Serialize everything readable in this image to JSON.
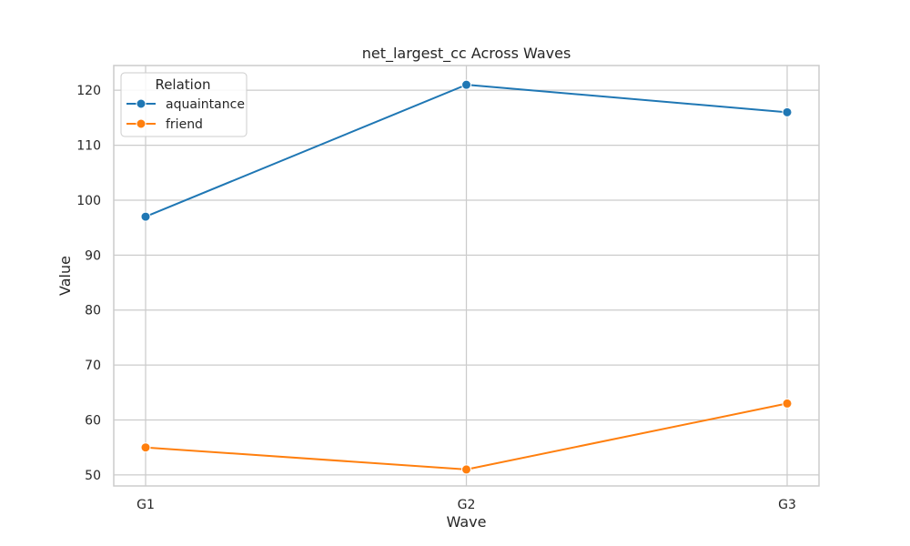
{
  "chart_data": {
    "type": "line",
    "title": "net_largest_cc Across Waves",
    "xlabel": "Wave",
    "ylabel": "Value",
    "categories": [
      "G1",
      "G2",
      "G3"
    ],
    "ylim": [
      48,
      124.5
    ],
    "yticks": [
      50,
      60,
      70,
      80,
      90,
      100,
      110,
      120
    ],
    "grid": true,
    "legend": {
      "title": "Relation",
      "placement": "top-left"
    },
    "series": [
      {
        "name": "aquaintance",
        "color": "#1f77b4",
        "values": [
          97,
          121,
          116
        ]
      },
      {
        "name": "friend",
        "color": "#ff7f0e",
        "values": [
          55,
          51,
          63
        ]
      }
    ]
  }
}
